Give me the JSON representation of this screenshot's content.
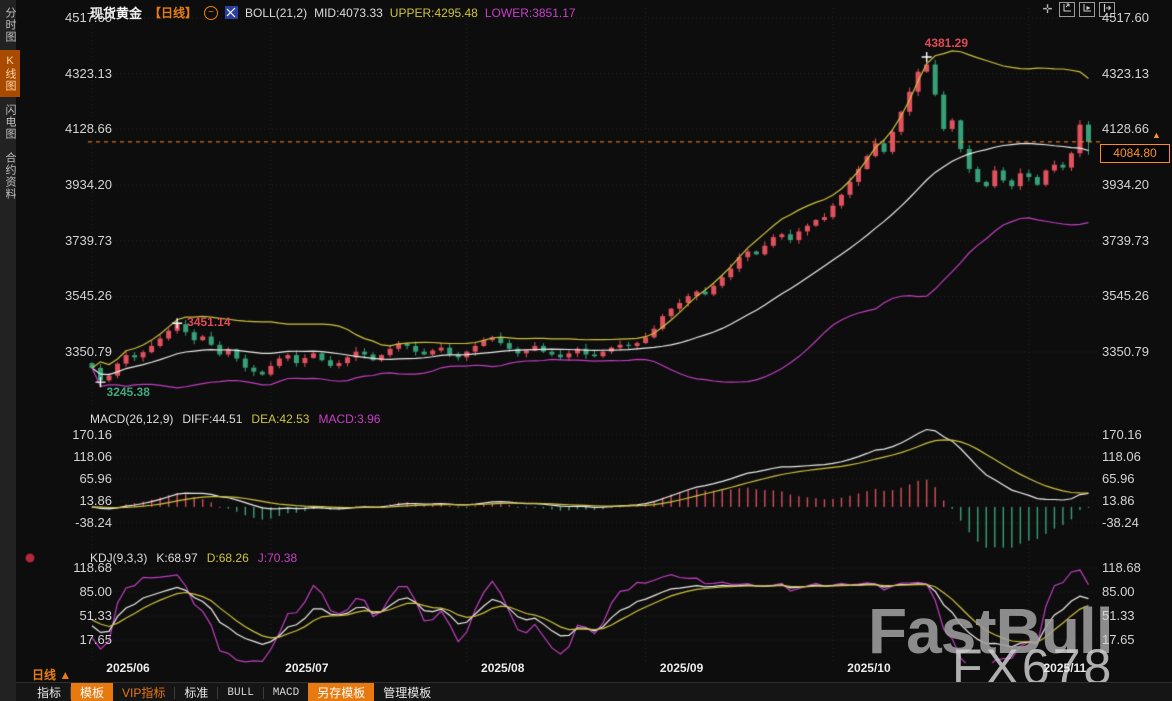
{
  "header": {
    "symbol": "现货黄金",
    "period_tag": "【日线】",
    "collapse_glyph": "−",
    "indicator_title": "BOLL(21,2)",
    "mid_label": "MID:4073.33",
    "upper_label": "UPPER:4295.48",
    "lower_label": "LOWER:3851.17"
  },
  "sidebar": {
    "items": [
      {
        "label": "分时图",
        "active": false
      },
      {
        "label": "K线图",
        "active": true
      },
      {
        "label": "闪电图",
        "active": false
      },
      {
        "label": "合约资料",
        "active": false
      }
    ]
  },
  "main_axis": {
    "labels": [
      "4517.60",
      "4323.13",
      "4128.66",
      "3934.20",
      "3739.73",
      "3545.26",
      "3350.79"
    ]
  },
  "macd_panel": {
    "title": "MACD(26,12,9)",
    "diff_label": "DIFF:44.51",
    "dea_label": "DEA:42.53",
    "macd_label": "MACD:3.96",
    "axis_labels": [
      "170.16",
      "118.06",
      "65.96",
      "13.86",
      "-38.24"
    ]
  },
  "kdj_panel": {
    "title": "KDJ(9,3,3)",
    "k_label": "K:68.97",
    "d_label": "D:68.26",
    "j_label": "J:70.38",
    "axis_labels": [
      "118.68",
      "85.00",
      "51.33",
      "17.65"
    ]
  },
  "x_axis": {
    "months": [
      "2025/06",
      "2025/07",
      "2025/08",
      "2025/09",
      "2025/10",
      "2025/11"
    ]
  },
  "period_label": "日线 ▲",
  "current_price_label": "4084.80",
  "tag_arrow": "▲",
  "watermark": {
    "brand": "FastBull",
    "source": "FX678"
  },
  "toolbar": {
    "items": [
      {
        "label": "指标",
        "style": "plain"
      },
      {
        "label": "模板",
        "style": "active"
      },
      {
        "label": "VIP指标",
        "style": "vip"
      },
      {
        "label": "标准",
        "style": "plain"
      },
      {
        "label": "BULL",
        "style": "mono"
      },
      {
        "label": "MACD",
        "style": "mono"
      },
      {
        "label": "另存模板",
        "style": "active"
      },
      {
        "label": "管理模板",
        "style": "plain"
      }
    ]
  },
  "chart_data": {
    "type": "candlestick",
    "title": "现货黄金 日线 BOLL(21,2) + MACD(26,12,9) + KDJ(9,3,3)",
    "x_months": [
      "2025/06",
      "2025/07",
      "2025/08",
      "2025/09",
      "2025/10",
      "2025/11"
    ],
    "month_start_indices": [
      0,
      21,
      44,
      65,
      87,
      110
    ],
    "first_open": 3312,
    "closes": [
      3295,
      3252,
      3268,
      3310,
      3340,
      3332,
      3350,
      3372,
      3398,
      3425,
      3448,
      3420,
      3392,
      3405,
      3376,
      3342,
      3360,
      3328,
      3296,
      3282,
      3272,
      3302,
      3328,
      3340,
      3312,
      3330,
      3346,
      3322,
      3302,
      3312,
      3332,
      3352,
      3342,
      3322,
      3340,
      3362,
      3380,
      3372,
      3352,
      3342,
      3356,
      3366,
      3342,
      3332,
      3352,
      3372,
      3392,
      3402,
      3382,
      3362,
      3346,
      3356,
      3372,
      3352,
      3342,
      3332,
      3346,
      3362,
      3342,
      3336,
      3352,
      3366,
      3376,
      3372,
      3382,
      3402,
      3432,
      3476,
      3502,
      3522,
      3546,
      3562,
      3552,
      3582,
      3612,
      3642,
      3682,
      3702,
      3692,
      3722,
      3752,
      3762,
      3742,
      3772,
      3792,
      3812,
      3822,
      3862,
      3900,
      3945,
      3990,
      4035,
      4080,
      4050,
      4120,
      4190,
      4260,
      4330,
      4355,
      4250,
      4130,
      4160,
      4060,
      3990,
      3945,
      3930,
      3985,
      3950,
      3930,
      3975,
      3962,
      3935,
      3985,
      4005,
      3995,
      4045,
      4145,
      4084.8
    ],
    "annotations": [
      {
        "label": "4381.29",
        "index": 98,
        "price": 4381.29,
        "type": "high"
      },
      {
        "label": "3451.14",
        "index": 10,
        "price": 3451.14,
        "type": "high"
      },
      {
        "label": "3245.38",
        "index": 1,
        "price": 3245.38,
        "type": "low"
      }
    ],
    "overrides": [
      {
        "index": 117,
        "field": "low",
        "price": 4040
      }
    ],
    "current_price": 4084.8,
    "boll": {
      "period": 21,
      "mult": 2,
      "mid": 4073.33,
      "upper": 4295.48,
      "lower": 3851.17
    },
    "macd": {
      "fast": 12,
      "slow": 26,
      "signal": 9,
      "diff": 44.51,
      "dea": 42.53,
      "macd": 3.96
    },
    "kdj": {
      "n": 9,
      "m1": 3,
      "m2": 3,
      "k": 68.97,
      "d": 68.26,
      "j": 70.38
    },
    "price_axis_ticks": [
      4517.6,
      4323.13,
      4128.66,
      3934.2,
      3739.73,
      3545.26,
      3350.79
    ],
    "macd_axis_ticks": [
      170.16,
      118.06,
      65.96,
      13.86,
      -38.24
    ],
    "kdj_axis_ticks": [
      118.68,
      85.0,
      51.33,
      17.65
    ],
    "colors": {
      "up": "#e0525e",
      "down": "#36a178",
      "boll_mid": "#ececec",
      "boll_upper": "#cfc33f",
      "boll_lower": "#c13fc1",
      "diff": "#ececec",
      "dea": "#cfc33f",
      "hist_pos": "#d94f5c",
      "hist_neg": "#3aa17a",
      "k": "#ececec",
      "d": "#cfc33f",
      "j": "#c13fc1",
      "current_line": "#ff8a1e",
      "anno_high": "#e04a56",
      "anno_low": "#3fa97e",
      "grid": "#262626"
    }
  }
}
